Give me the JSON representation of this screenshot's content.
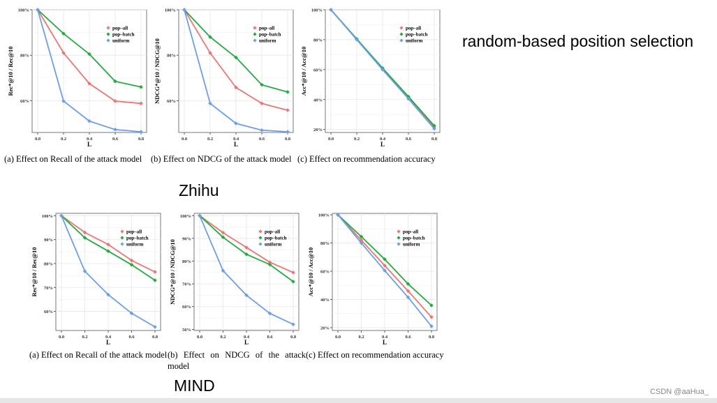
{
  "heading": "random-based position selection",
  "section_labels": {
    "zhihu": "Zhihu",
    "mind": "MIND"
  },
  "captions": {
    "zhihu": [
      "(a) Effect on Recall of the attack model",
      "(b) Effect on NDCG of the attack model",
      "(c) Effect on recommendation accuracy"
    ],
    "mind": [
      "(a) Effect on Recall of the attack model",
      "(b) Effect on NDCG of the attack model",
      "(c) Effect on recommendation accuracy"
    ]
  },
  "watermark": "CSDN @aaHua_",
  "colors": {
    "pop_all": "#f07470",
    "pop_batch": "#1fae3d",
    "uniform": "#6a9ff0"
  },
  "chart_data": [
    {
      "id": "zhihu-recall",
      "type": "line",
      "dataset": "Zhihu",
      "xlabel": "L",
      "ylabel": "Rec*@10 / Rec@10",
      "x": [
        0.0,
        0.2,
        0.4,
        0.6,
        0.8
      ],
      "xticks": [
        "0.0",
        "0.2",
        "0.4",
        "0.6",
        "0.8"
      ],
      "ylim": [
        46,
        100
      ],
      "yticks": [
        60,
        80,
        100
      ],
      "ytick_labels": [
        "60%",
        "80%",
        "100%"
      ],
      "grid": true,
      "legend": "top-right",
      "series": [
        {
          "name": "pop–all",
          "color": "#f07470",
          "values": [
            100,
            81,
            67.5,
            59.8,
            58.8
          ]
        },
        {
          "name": "pop–batch",
          "color": "#1fae3d",
          "values": [
            100,
            89.5,
            80.5,
            68.5,
            66
          ]
        },
        {
          "name": "uniform",
          "color": "#6a9ff0",
          "values": [
            100,
            59.8,
            51,
            47.3,
            46.3
          ]
        }
      ]
    },
    {
      "id": "zhihu-ndcg",
      "type": "line",
      "dataset": "Zhihu",
      "xlabel": "L",
      "ylabel": "NDCG*@10 / NDCG@10",
      "x": [
        0.0,
        0.2,
        0.4,
        0.6,
        0.8
      ],
      "xticks": [
        "0.0",
        "0.2",
        "0.4",
        "0.6",
        "0.8"
      ],
      "ylim": [
        46,
        100
      ],
      "yticks": [
        60,
        80,
        100
      ],
      "ytick_labels": [
        "60%",
        "80%",
        "100%"
      ],
      "grid": true,
      "legend": "top-right",
      "series": [
        {
          "name": "pop–all",
          "color": "#f07470",
          "values": [
            100,
            81,
            65.8,
            58.8,
            55.8
          ]
        },
        {
          "name": "pop–batch",
          "color": "#1fae3d",
          "values": [
            100,
            88,
            79,
            67,
            63.8
          ]
        },
        {
          "name": "uniform",
          "color": "#6a9ff0",
          "values": [
            100,
            58.8,
            50,
            47,
            46.3
          ]
        }
      ]
    },
    {
      "id": "zhihu-acc",
      "type": "line",
      "dataset": "Zhihu",
      "xlabel": "L",
      "ylabel": "Acc*@10 / Acc@10",
      "x": [
        0.0,
        0.2,
        0.4,
        0.6,
        0.8
      ],
      "xticks": [
        "0.0",
        "0.2",
        "0.4",
        "0.6",
        "0.8"
      ],
      "ylim": [
        18,
        100
      ],
      "yticks": [
        20,
        40,
        60,
        80,
        100
      ],
      "ytick_labels": [
        "20%",
        "40%",
        "60%",
        "80%",
        "100%"
      ],
      "grid": true,
      "legend": "top-right",
      "series": [
        {
          "name": "pop–all",
          "color": "#f07470",
          "values": [
            100,
            80.5,
            60.5,
            41.5,
            21.5
          ]
        },
        {
          "name": "pop–batch",
          "color": "#1fae3d",
          "values": [
            100,
            80.5,
            61,
            42,
            22.5
          ]
        },
        {
          "name": "uniform",
          "color": "#6a9ff0",
          "values": [
            100,
            80,
            60,
            40.5,
            20.5
          ]
        }
      ]
    },
    {
      "id": "mind-recall",
      "type": "line",
      "dataset": "MIND",
      "xlabel": "L",
      "ylabel": "Rec*@10 / Rec@10",
      "x": [
        0.0,
        0.2,
        0.4,
        0.6,
        0.8
      ],
      "xticks": [
        "0.0",
        "0.2",
        "0.4",
        "0.6",
        "0.8"
      ],
      "ylim": [
        52,
        101
      ],
      "yticks": [
        60,
        70,
        80,
        90,
        100
      ],
      "ytick_labels": [
        "60%",
        "70%",
        "80%",
        "90%",
        "100%"
      ],
      "grid": true,
      "legend": "top-right",
      "series": [
        {
          "name": "pop–all",
          "color": "#f07470",
          "values": [
            100,
            93,
            88,
            81.3,
            76.5
          ]
        },
        {
          "name": "pop–batch",
          "color": "#1fae3d",
          "values": [
            100,
            90.8,
            85.2,
            79.5,
            73
          ]
        },
        {
          "name": "uniform",
          "color": "#6a9ff0",
          "values": [
            100,
            76.8,
            67,
            59.2,
            53.5
          ]
        }
      ]
    },
    {
      "id": "mind-ndcg",
      "type": "line",
      "dataset": "MIND",
      "xlabel": "L",
      "ylabel": "NDCG*@10 / NDCG@10",
      "x": [
        0.0,
        0.2,
        0.4,
        0.6,
        0.8
      ],
      "xticks": [
        "0.0",
        "0.2",
        "0.4",
        "0.6",
        "0.8"
      ],
      "ylim": [
        49.5,
        101
      ],
      "yticks": [
        50,
        60,
        70,
        80,
        90,
        100
      ],
      "ytick_labels": [
        "50%",
        "60%",
        "70%",
        "80%",
        "90%",
        "100%"
      ],
      "grid": true,
      "legend": "top-right",
      "series": [
        {
          "name": "pop–all",
          "color": "#f07470",
          "values": [
            100,
            92.5,
            86,
            79.5,
            75
          ]
        },
        {
          "name": "pop–batch",
          "color": "#1fae3d",
          "values": [
            100,
            90.5,
            83,
            78.5,
            71
          ]
        },
        {
          "name": "uniform",
          "color": "#6a9ff0",
          "values": [
            100,
            75.8,
            65,
            57,
            52.2
          ]
        }
      ]
    },
    {
      "id": "mind-acc",
      "type": "line",
      "dataset": "MIND",
      "xlabel": "L",
      "ylabel": "Acc*@10 / Acc@10",
      "x": [
        0.0,
        0.2,
        0.4,
        0.6,
        0.8
      ],
      "xticks": [
        "0.0",
        "0.2",
        "0.4",
        "0.6",
        "0.8"
      ],
      "ylim": [
        18,
        101
      ],
      "yticks": [
        20,
        40,
        60,
        80,
        100
      ],
      "ytick_labels": [
        "20%",
        "40%",
        "60%",
        "80%",
        "100%"
      ],
      "grid": true,
      "legend": "top-right",
      "series": [
        {
          "name": "pop–all",
          "color": "#f07470",
          "values": [
            100,
            82,
            64,
            46,
            27.5
          ]
        },
        {
          "name": "pop–batch",
          "color": "#1fae3d",
          "values": [
            100,
            84.5,
            68.5,
            51,
            35.8
          ]
        },
        {
          "name": "uniform",
          "color": "#6a9ff0",
          "values": [
            100,
            80,
            60.5,
            41.5,
            21
          ]
        }
      ]
    }
  ]
}
